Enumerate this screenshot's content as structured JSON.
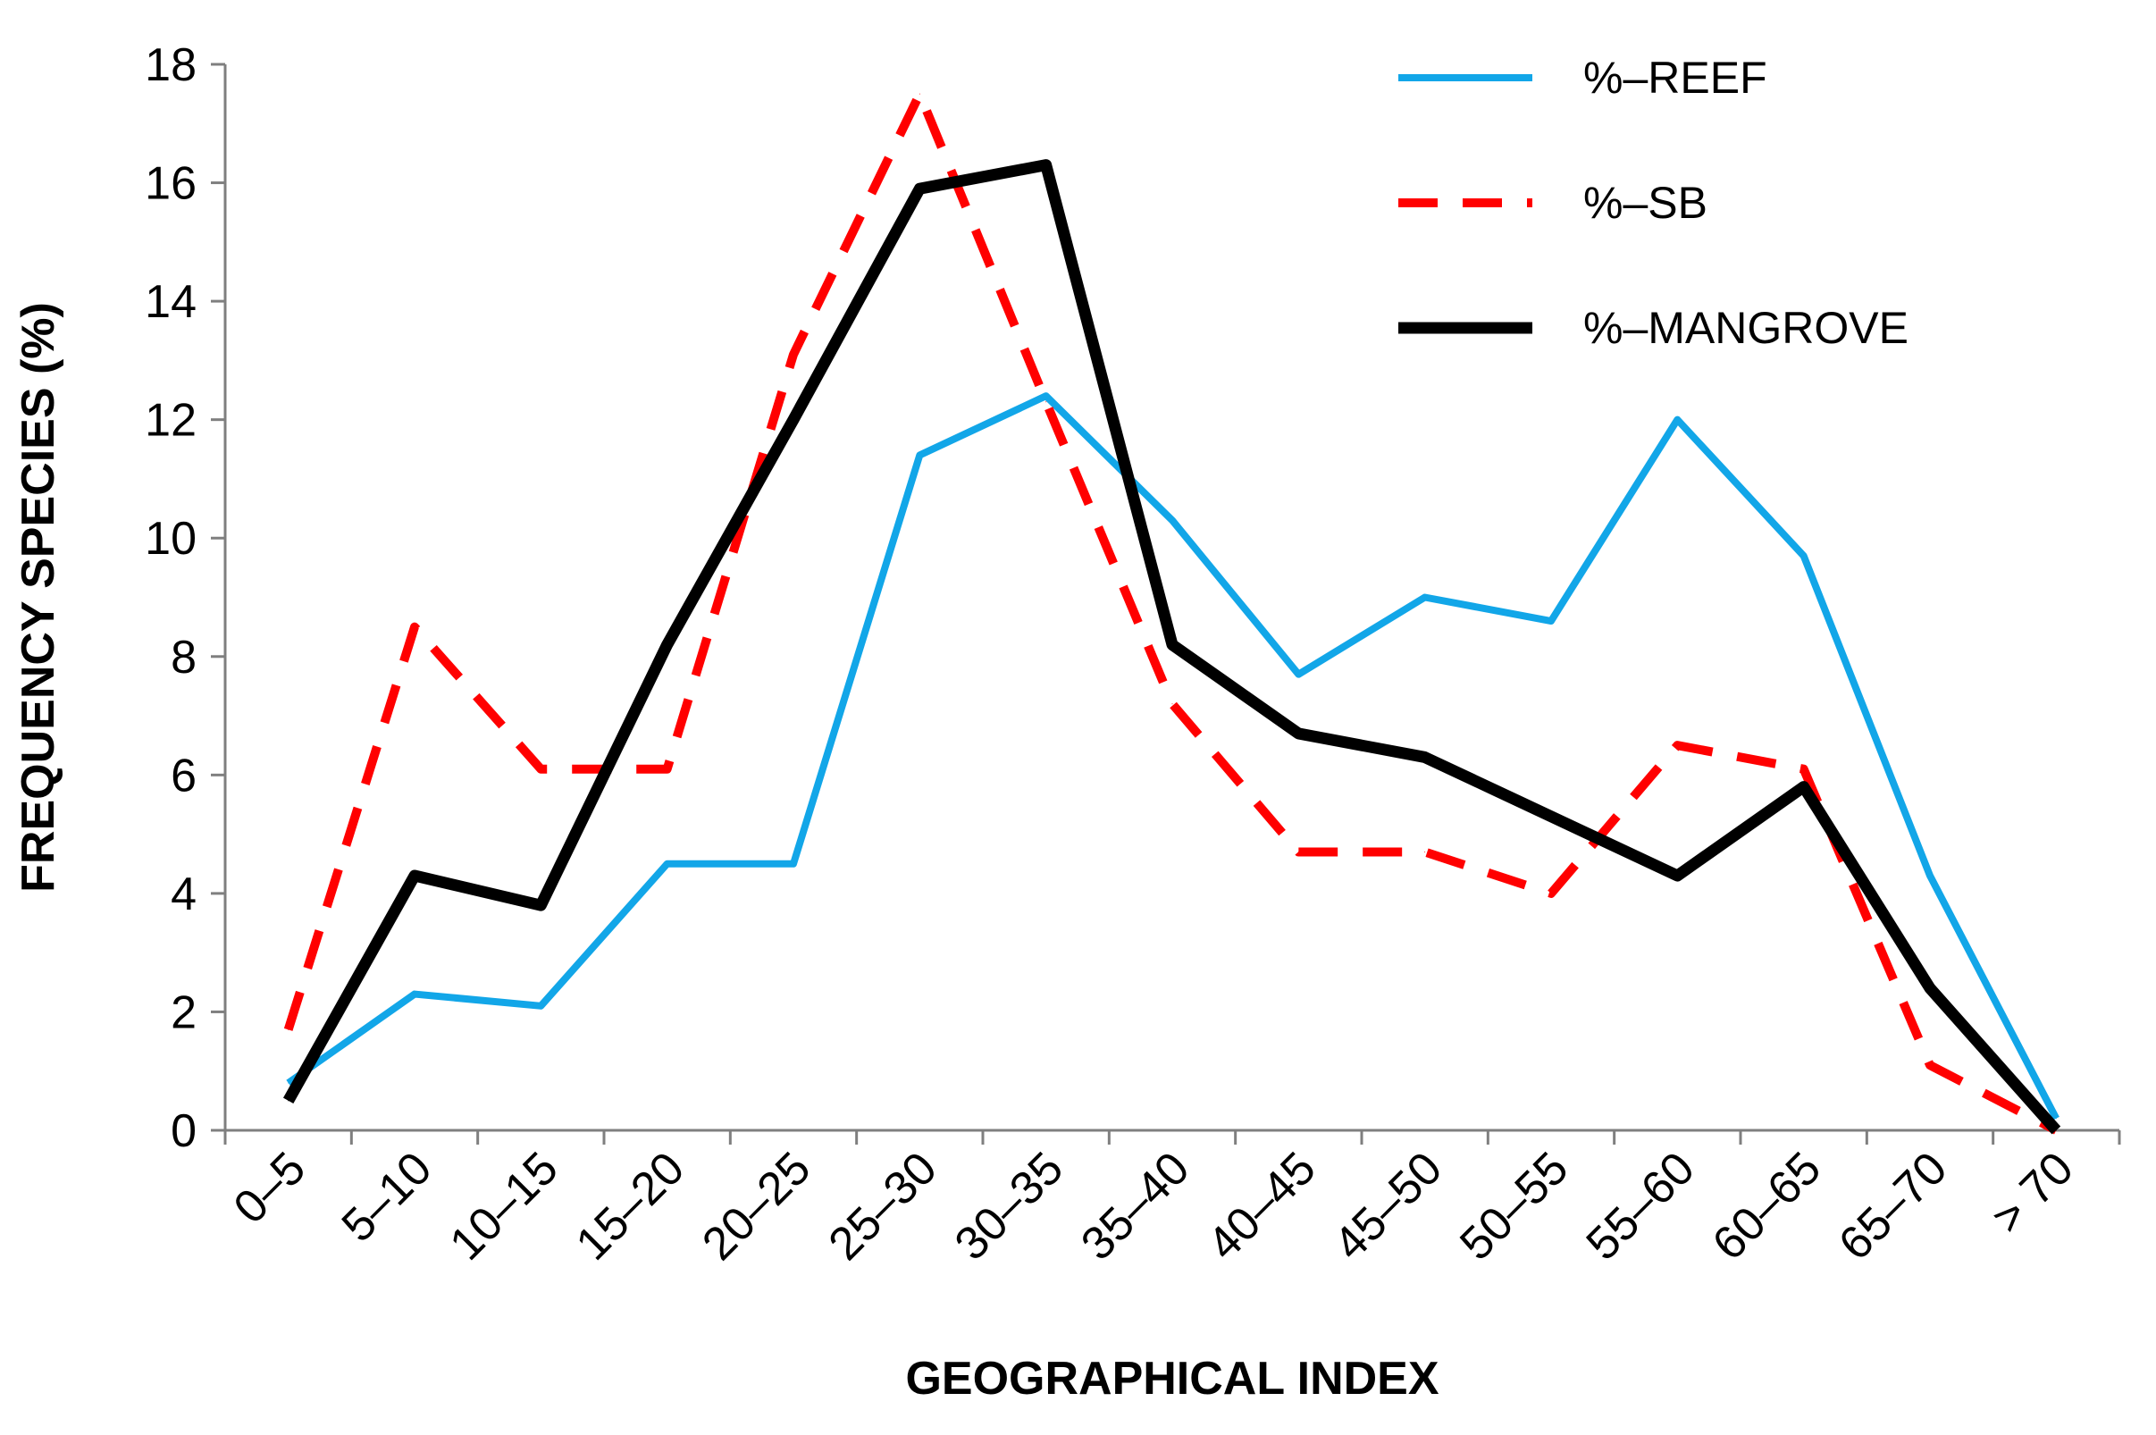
{
  "chart_data": {
    "type": "line",
    "title": "",
    "xlabel": "GEOGRAPHICAL INDEX",
    "ylabel": "FREQUENCY SPECIES (%)",
    "ylim": [
      0,
      18
    ],
    "yticks": [
      "0",
      "2",
      "4",
      "6",
      "8",
      "10",
      "12",
      "14",
      "16",
      "18"
    ],
    "grid": false,
    "legend_position": "top-right",
    "categories": [
      "0–5",
      "5–10",
      "10–15",
      "15–20",
      "20–25",
      "25–30",
      "30–35",
      "35–40",
      "40–45",
      "45–50",
      "50–55",
      "55–60",
      "60–65",
      "65–70",
      "> 70"
    ],
    "series": [
      {
        "name": "%–REEF",
        "color": "#12A6E8",
        "style": "solid",
        "values": [
          0.8,
          2.3,
          2.1,
          4.5,
          4.5,
          11.4,
          12.4,
          10.3,
          7.7,
          9.0,
          8.6,
          12.0,
          9.7,
          4.3,
          0.2
        ]
      },
      {
        "name": "%–SB",
        "color": "#FF0000",
        "style": "dashed",
        "values": [
          1.7,
          8.5,
          6.1,
          6.1,
          13.1,
          17.5,
          12.3,
          7.2,
          4.7,
          4.7,
          4.0,
          6.5,
          6.1,
          1.1,
          0.0
        ]
      },
      {
        "name": "%–MANGROVE",
        "color": "#000000",
        "style": "solid-thick",
        "values": [
          0.5,
          4.3,
          3.8,
          8.2,
          12.0,
          15.9,
          16.3,
          8.2,
          6.7,
          6.3,
          5.3,
          4.3,
          5.8,
          2.4,
          0.0
        ]
      }
    ]
  }
}
